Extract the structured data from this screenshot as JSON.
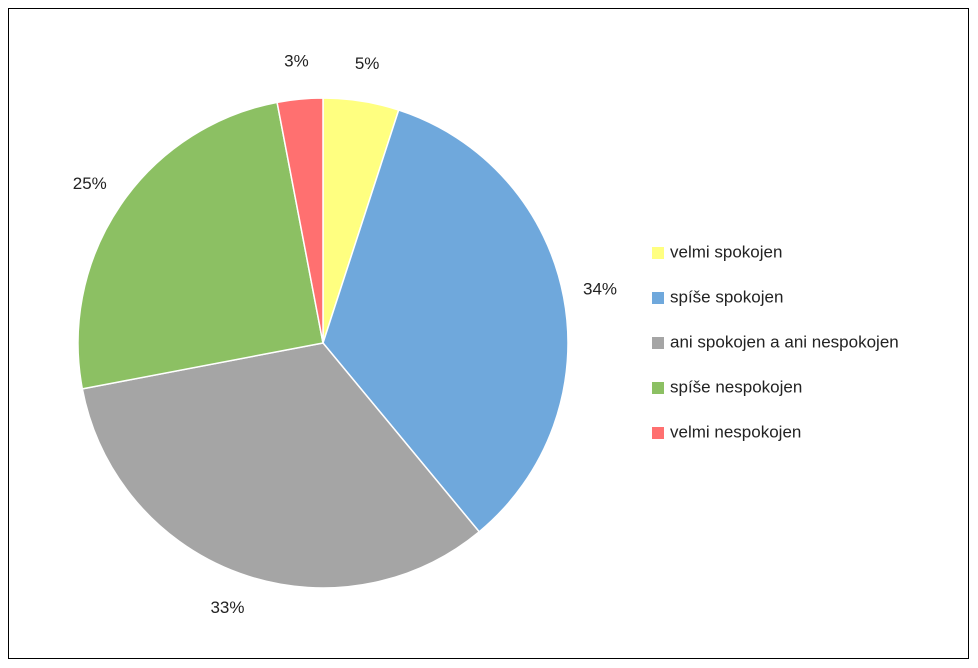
{
  "chart_data": {
    "type": "pie",
    "categories": [
      "velmi spokojen",
      "spíše spokojen",
      "ani spokojen a ani nespokojen",
      "spíše nespokojen",
      "velmi nespokojen"
    ],
    "values": [
      5,
      34,
      33,
      25,
      3
    ],
    "value_labels": [
      "5%",
      "34%",
      "33%",
      "25%",
      "3%"
    ],
    "colors": [
      "#ffff80",
      "#6fa8dc",
      "#a5a5a5",
      "#8cc063",
      "#ff7070"
    ],
    "legend": "right"
  }
}
